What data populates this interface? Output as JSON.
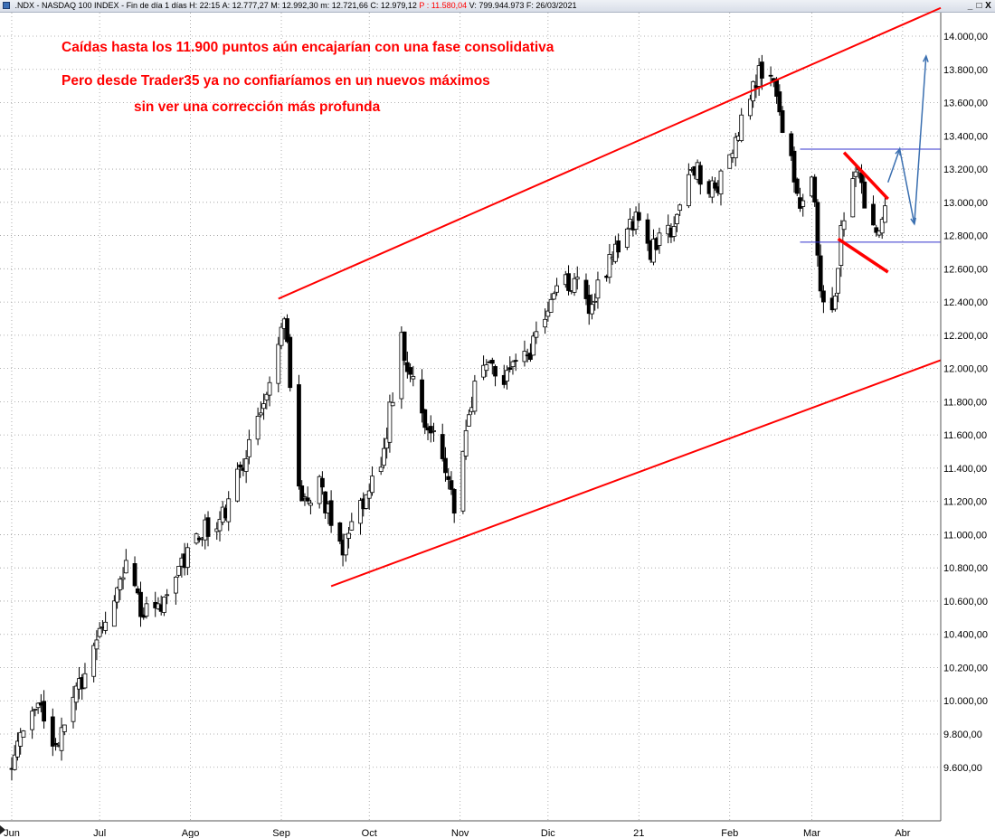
{
  "window": {
    "symbol": ".NDX",
    "name": "NASDAQ 100 INDEX",
    "period": "Fin de día 1 días",
    "high": "H: 22:15",
    "open": "A: 12.777,27",
    "max": "M: 12.992,30",
    "min": "m: 12.721,66",
    "close": "C: 12.979,12",
    "pointer": "P : 11.580,04",
    "volume": "V: 799.944.973",
    "date": "F: 26/03/2021",
    "controls": [
      "_",
      "□",
      "X"
    ]
  },
  "chart_data": {
    "type": "candlestick",
    "x_labels": [
      "Jun",
      "Jul",
      "Ago",
      "Sep",
      "Oct",
      "Nov",
      "Dic",
      "21",
      "Feb",
      "Mar",
      "Abr"
    ],
    "y_ticks": [
      "9.600,00",
      "9.800,00",
      "10.000,00",
      "10.200,00",
      "10.400,00",
      "10.600,00",
      "10.800,00",
      "11.000,00",
      "11.200,00",
      "11.400,00",
      "11.600,00",
      "11.800,00",
      "12.000,00",
      "12.200,00",
      "12.400,00",
      "12.600,00",
      "12.800,00",
      "13.000,00",
      "13.200,00",
      "13.400,00",
      "13.600,00",
      "13.800,00",
      "14.000,00"
    ],
    "ylim": [
      9450,
      14200
    ],
    "grid": true,
    "annotations": [
      "Caídas hasta los 11.900 puntos aún encajarían con una fase consolidativa",
      "Pero desde Trader35 ya no confiaríamos en un nuevos máximos",
      "sin ver una corrección más profunda"
    ],
    "anchors": [
      [
        "2020-06-01",
        9620
      ],
      [
        "2020-06-10",
        10050
      ],
      [
        "2020-06-16",
        9700
      ],
      [
        "2020-06-25",
        10120
      ],
      [
        "2020-07-01",
        10380
      ],
      [
        "2020-07-10",
        10850
      ],
      [
        "2020-07-15",
        10520
      ],
      [
        "2020-07-24",
        10620
      ],
      [
        "2020-08-01",
        10950
      ],
      [
        "2020-08-12",
        11120
      ],
      [
        "2020-08-20",
        11450
      ],
      [
        "2020-08-28",
        11900
      ],
      [
        "2020-09-02",
        12350
      ],
      [
        "2020-09-08",
        11150
      ],
      [
        "2020-09-14",
        11300
      ],
      [
        "2020-09-21",
        10900
      ],
      [
        "2020-09-28",
        11180
      ],
      [
        "2020-10-05",
        11420
      ],
      [
        "2020-10-12",
        12150
      ],
      [
        "2020-10-20",
        11700
      ],
      [
        "2020-10-26",
        11500
      ],
      [
        "2020-10-30",
        11150
      ],
      [
        "2020-11-04",
        11750
      ],
      [
        "2020-11-09",
        12050
      ],
      [
        "2020-11-16",
        11950
      ],
      [
        "2020-11-25",
        12100
      ],
      [
        "2020-12-02",
        12450
      ],
      [
        "2020-12-10",
        12550
      ],
      [
        "2020-12-15",
        12400
      ],
      [
        "2020-12-22",
        12650
      ],
      [
        "2020-12-31",
        12880
      ],
      [
        "2021-01-05",
        12700
      ],
      [
        "2021-01-12",
        12850
      ],
      [
        "2021-01-20",
        13200
      ],
      [
        "2021-01-27",
        13050
      ],
      [
        "2021-02-01",
        13300
      ],
      [
        "2021-02-08",
        13650
      ],
      [
        "2021-02-12",
        13800
      ],
      [
        "2021-02-16",
        13700
      ],
      [
        "2021-02-22",
        13250
      ],
      [
        "2021-02-25",
        12900
      ],
      [
        "2021-03-01",
        13200
      ],
      [
        "2021-03-04",
        12450
      ],
      [
        "2021-03-08",
        12350
      ],
      [
        "2021-03-12",
        12950
      ],
      [
        "2021-03-16",
        13250
      ],
      [
        "2021-03-19",
        12980
      ],
      [
        "2021-03-24",
        12780
      ],
      [
        "2021-03-26",
        12979
      ]
    ],
    "x_range": [
      "2020-05-28",
      "2021-04-14"
    ],
    "x_label_dates": [
      "2020-06-01",
      "2020-07-01",
      "2020-08-01",
      "2020-09-01",
      "2020-10-01",
      "2020-11-01",
      "2020-12-01",
      "2021-01-01",
      "2021-02-01",
      "2021-03-01",
      "2021-04-01"
    ],
    "channel_upper": [
      [
        "2020-08-31",
        12420
      ],
      [
        "2021-04-14",
        14170
      ]
    ],
    "channel_lower": [
      [
        "2020-09-18",
        10690
      ],
      [
        "2021-04-14",
        12050
      ]
    ],
    "range_top": [
      [
        "2021-02-25",
        13320
      ],
      [
        "2021-04-14",
        13320
      ]
    ],
    "range_bottom": [
      [
        "2021-02-25",
        12760
      ],
      [
        "2021-04-14",
        12760
      ]
    ],
    "wedge_upper": [
      [
        "2021-03-12",
        13300
      ],
      [
        "2021-03-27",
        13020
      ]
    ],
    "wedge_lower": [
      [
        "2021-03-10",
        12780
      ],
      [
        "2021-03-27",
        12580
      ]
    ],
    "projection": [
      [
        "2021-03-27",
        13120
      ],
      [
        "2021-03-31",
        13320
      ],
      [
        "2021-04-05",
        12870
      ],
      [
        "2021-04-09",
        13880
      ]
    ],
    "colors": {
      "channel": "#ff0000",
      "range": "#3333cc",
      "projection": "#3a6fb0",
      "candle": "#000000",
      "annotation": "#ff0000"
    }
  }
}
